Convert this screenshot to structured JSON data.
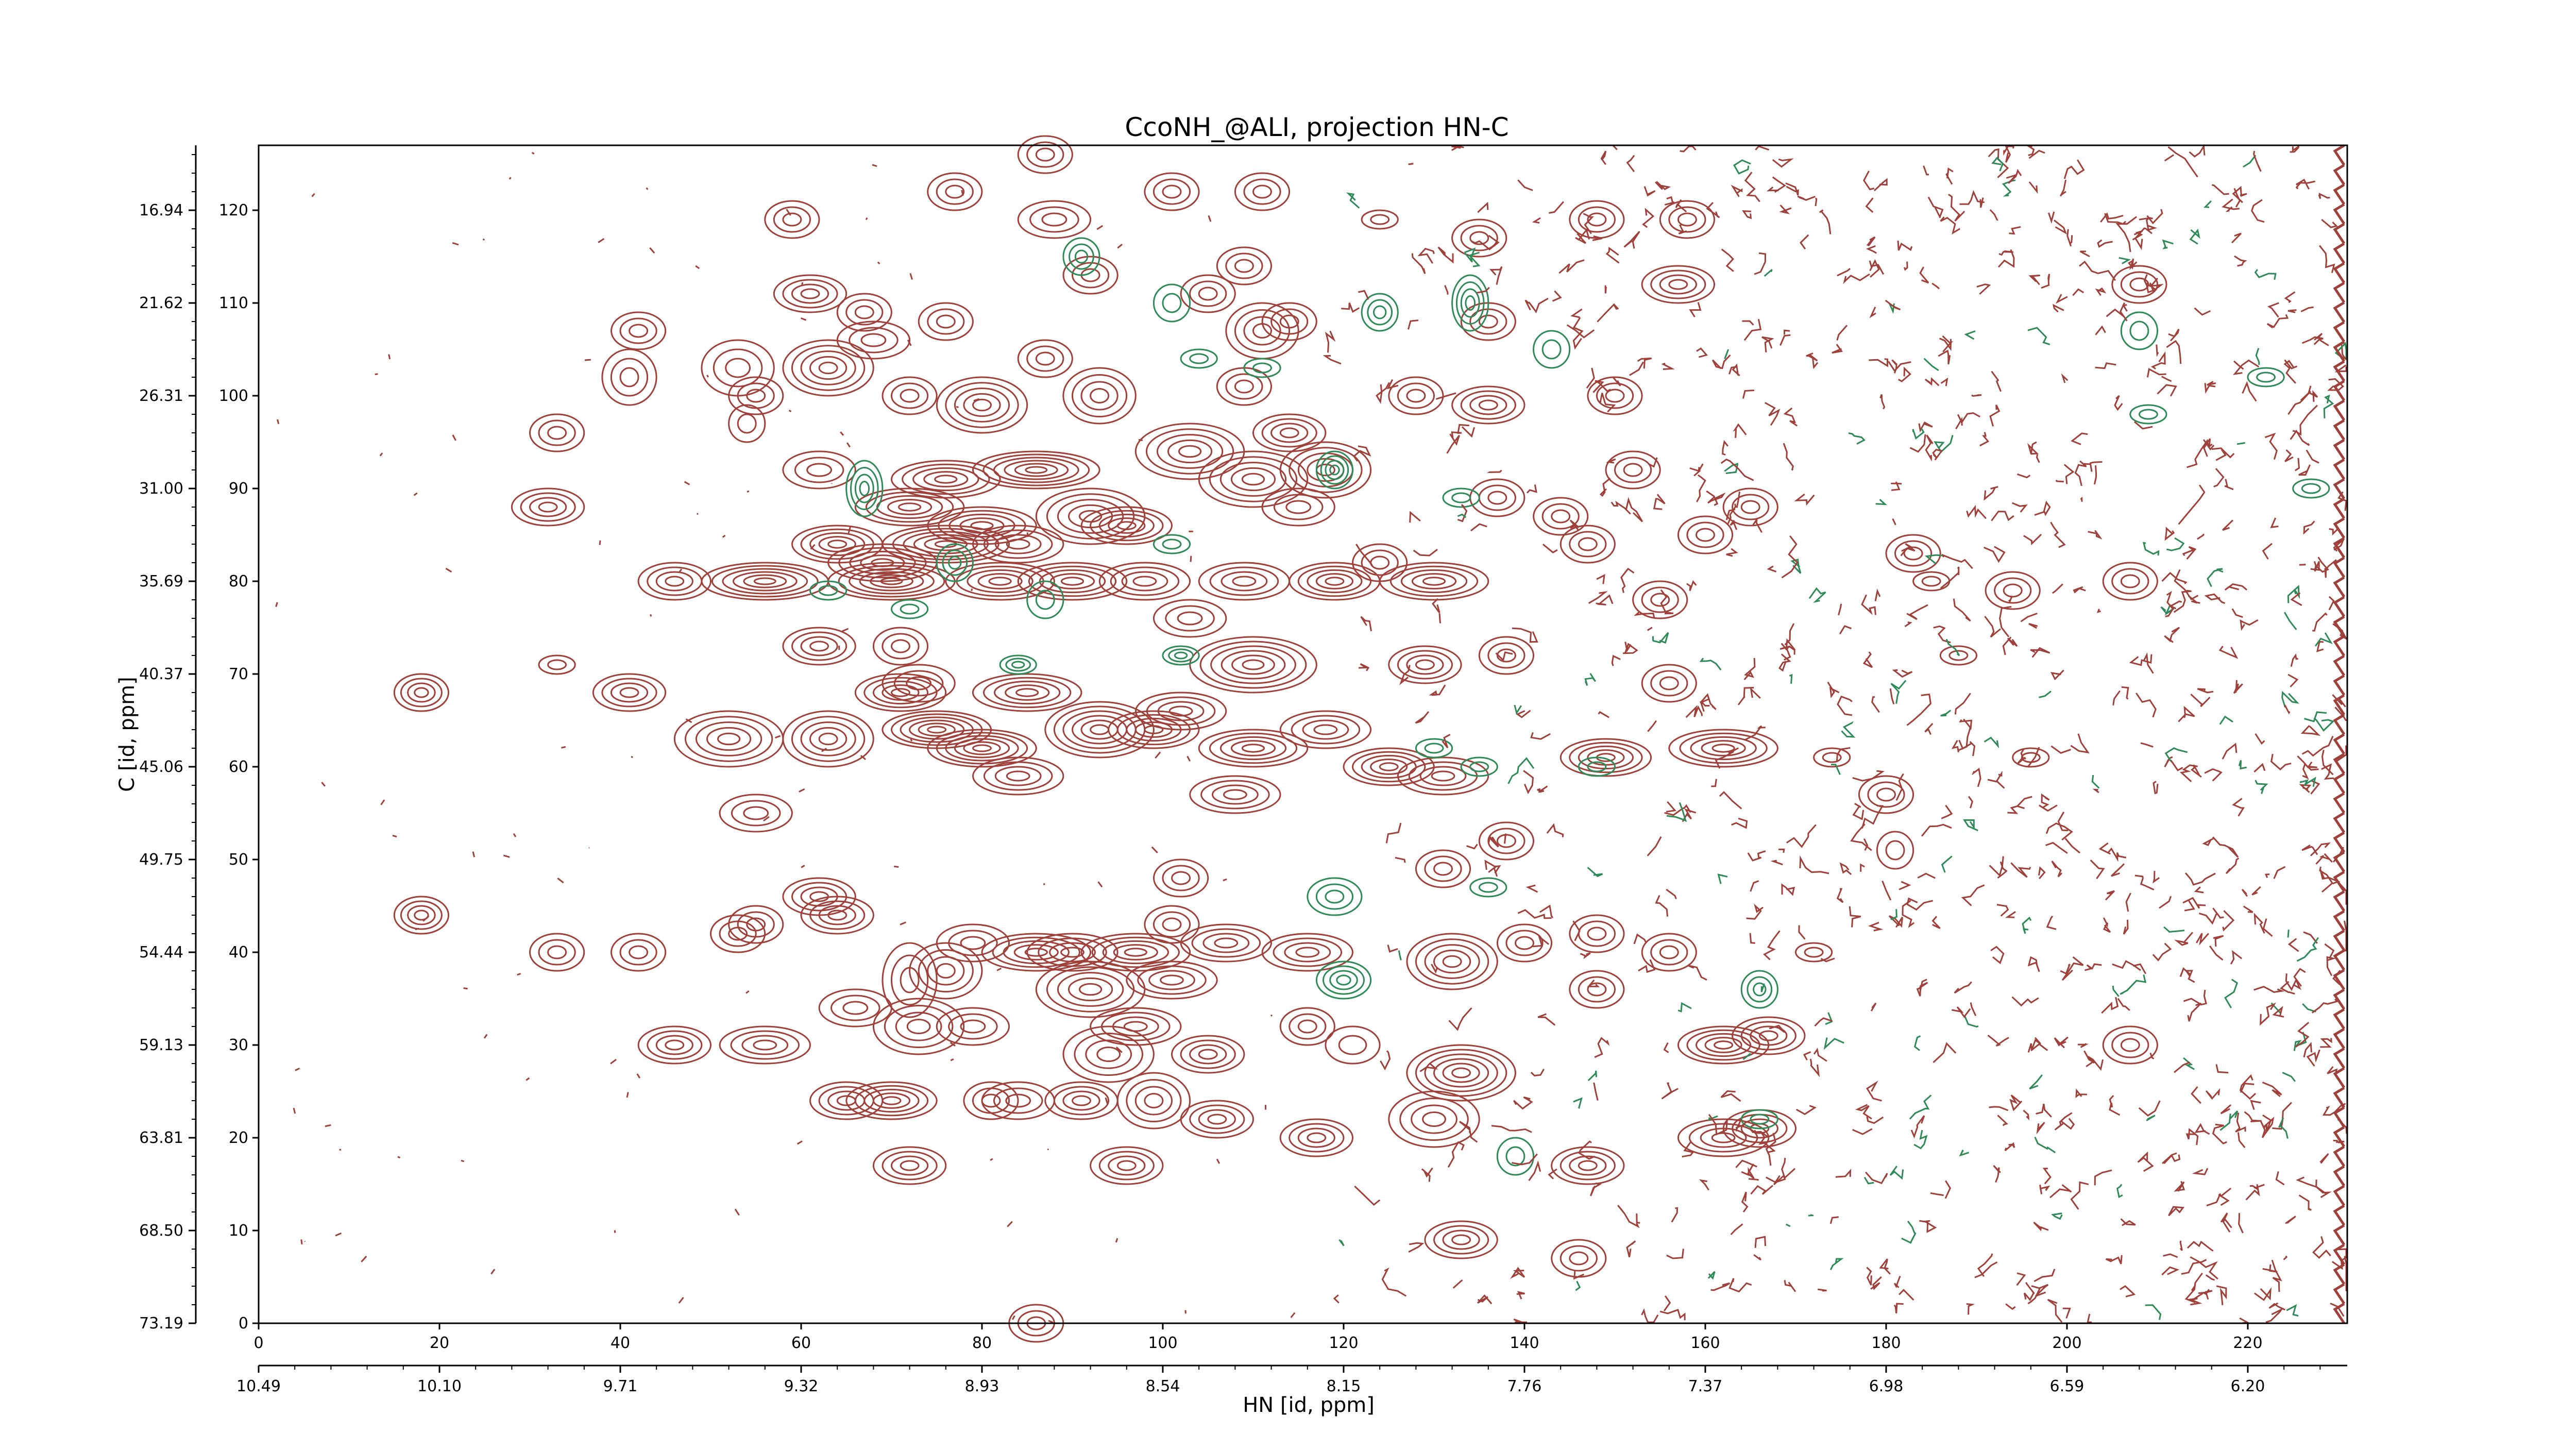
{
  "chart_data": {
    "type": "contour",
    "title": "CcoNH_@ALI, projection HN-C",
    "xlabel": "HN [id, ppm]",
    "ylabel": "C [id, ppm]",
    "x_index_ticks": [
      "0",
      "20",
      "40",
      "60",
      "80",
      "100",
      "120",
      "140",
      "160",
      "180",
      "200",
      "220"
    ],
    "x_index_range": [
      0,
      231
    ],
    "y_index_ticks": [
      "0",
      "10",
      "20",
      "30",
      "40",
      "50",
      "60",
      "70",
      "80",
      "90",
      "100",
      "110",
      "120"
    ],
    "y_index_range": [
      0,
      127
    ],
    "x_ppm_ticks": [
      "10.49",
      "10.10",
      "9.71",
      "9.32",
      "8.93",
      "8.54",
      "8.15",
      "7.76",
      "7.37",
      "6.98",
      "6.59",
      "6.20"
    ],
    "y_ppm_ticks": [
      "73.19",
      "68.50",
      "63.81",
      "59.13",
      "54.44",
      "49.75",
      "45.06",
      "40.37",
      "35.69",
      "31.00",
      "26.31",
      "21.62",
      "16.94"
    ],
    "positive_color": "#a0403a",
    "negative_color": "#2e8b57",
    "peaks": [
      [
        5,
        72,
        1,
        1,
        0
      ],
      [
        18,
        68,
        3,
        2,
        4
      ],
      [
        18,
        44,
        3,
        2,
        4
      ],
      [
        17,
        58,
        1,
        1,
        0
      ],
      [
        17,
        47,
        1,
        1,
        0
      ],
      [
        33,
        96,
        3,
        2,
        3
      ],
      [
        32,
        88,
        4,
        2,
        4
      ],
      [
        33,
        71,
        2,
        1,
        2
      ],
      [
        33,
        40,
        3,
        2,
        3
      ],
      [
        42,
        107,
        3,
        2,
        3
      ],
      [
        41,
        102,
        3,
        3,
        3
      ],
      [
        41,
        68,
        4,
        2,
        4
      ],
      [
        42,
        40,
        3,
        2,
        3
      ],
      [
        46,
        80,
        4,
        2,
        4
      ],
      [
        46,
        30,
        4,
        2,
        4
      ],
      [
        53,
        103,
        4,
        3,
        3
      ],
      [
        55,
        100,
        3,
        2,
        3
      ],
      [
        54,
        97,
        2,
        2,
        2
      ],
      [
        52,
        63,
        6,
        3,
        5
      ],
      [
        55,
        55,
        4,
        2,
        3
      ],
      [
        56,
        80,
        7,
        2,
        6
      ],
      [
        56,
        30,
        5,
        2,
        4
      ],
      [
        55,
        43,
        3,
        2,
        3
      ],
      [
        53,
        42,
        3,
        2,
        3
      ],
      [
        59,
        119,
        3,
        2,
        3
      ],
      [
        61,
        111,
        4,
        2,
        4
      ],
      [
        63,
        103,
        5,
        3,
        5
      ],
      [
        68,
        106,
        4,
        2,
        3
      ],
      [
        62,
        92,
        4,
        2,
        3
      ],
      [
        64,
        84,
        5,
        2,
        5
      ],
      [
        62,
        73,
        4,
        2,
        4
      ],
      [
        63,
        63,
        5,
        3,
        5
      ],
      [
        62,
        46,
        4,
        2,
        4
      ],
      [
        64,
        44,
        4,
        2,
        4
      ],
      [
        66,
        34,
        4,
        2,
        3
      ],
      [
        65,
        24,
        4,
        2,
        4
      ],
      [
        67,
        109,
        3,
        2,
        3
      ],
      [
        72,
        100,
        3,
        2,
        3
      ],
      [
        72,
        88,
        6,
        2,
        5
      ],
      [
        69,
        82,
        6,
        2,
        5
      ],
      [
        70,
        80,
        7,
        2,
        6
      ],
      [
        71,
        73,
        3,
        2,
        3
      ],
      [
        71,
        68,
        5,
        2,
        5
      ],
      [
        70,
        24,
        5,
        2,
        5
      ],
      [
        72,
        17,
        4,
        2,
        4
      ],
      [
        72,
        37,
        3,
        4,
        3
      ],
      [
        76,
        108,
        3,
        2,
        3
      ],
      [
        76,
        91,
        6,
        2,
        5
      ],
      [
        76,
        84,
        7,
        2,
        6
      ],
      [
        73,
        69,
        4,
        2,
        3
      ],
      [
        75,
        64,
        6,
        2,
        6
      ],
      [
        73,
        32,
        5,
        3,
        4
      ],
      [
        76,
        38,
        4,
        3,
        4
      ],
      [
        77,
        122,
        3,
        2,
        3
      ],
      [
        80,
        99,
        5,
        3,
        5
      ],
      [
        80,
        86,
        6,
        2,
        5
      ],
      [
        82,
        80,
        6,
        2,
        5
      ],
      [
        80,
        62,
        6,
        2,
        6
      ],
      [
        79,
        41,
        4,
        2,
        3
      ],
      [
        79,
        32,
        4,
        2,
        3
      ],
      [
        81,
        24,
        3,
        2,
        3
      ],
      [
        84,
        84,
        5,
        2,
        4
      ],
      [
        86,
        92,
        7,
        2,
        6
      ],
      [
        85,
        68,
        6,
        2,
        5
      ],
      [
        84,
        59,
        5,
        2,
        4
      ],
      [
        86,
        40,
        6,
        2,
        5
      ],
      [
        84,
        24,
        4,
        2,
        3
      ],
      [
        86,
        0,
        3,
        2,
        3
      ],
      [
        87,
        126,
        3,
        2,
        3
      ],
      [
        88,
        119,
        4,
        2,
        3
      ],
      [
        87,
        104,
        3,
        2,
        3
      ],
      [
        92,
        113,
        3,
        2,
        3
      ],
      [
        93,
        100,
        4,
        3,
        4
      ],
      [
        92,
        87,
        6,
        3,
        5
      ],
      [
        90,
        80,
        6,
        2,
        5
      ],
      [
        93,
        64,
        6,
        3,
        6
      ],
      [
        90,
        40,
        5,
        2,
        4
      ],
      [
        92,
        36,
        6,
        3,
        5
      ],
      [
        94,
        29,
        5,
        3,
        4
      ],
      [
        91,
        24,
        4,
        2,
        4
      ],
      [
        96,
        86,
        5,
        2,
        5
      ],
      [
        98,
        80,
        5,
        2,
        4
      ],
      [
        99,
        64,
        5,
        2,
        5
      ],
      [
        97,
        40,
        6,
        2,
        5
      ],
      [
        97,
        32,
        5,
        2,
        4
      ],
      [
        101,
        122,
        3,
        2,
        3
      ],
      [
        105,
        111,
        3,
        2,
        3
      ],
      [
        103,
        94,
        6,
        3,
        5
      ],
      [
        103,
        76,
        4,
        2,
        3
      ],
      [
        102,
        66,
        5,
        2,
        4
      ],
      [
        102,
        48,
        3,
        2,
        3
      ],
      [
        101,
        43,
        3,
        2,
        3
      ],
      [
        101,
        37,
        5,
        2,
        4
      ],
      [
        99,
        24,
        4,
        3,
        4
      ],
      [
        96,
        17,
        4,
        2,
        4
      ],
      [
        109,
        114,
        3,
        2,
        3
      ],
      [
        111,
        107,
        4,
        3,
        4
      ],
      [
        109,
        101,
        3,
        2,
        3
      ],
      [
        110,
        91,
        6,
        3,
        5
      ],
      [
        109,
        80,
        5,
        2,
        4
      ],
      [
        110,
        71,
        7,
        3,
        6
      ],
      [
        110,
        62,
        6,
        2,
        5
      ],
      [
        108,
        57,
        5,
        2,
        4
      ],
      [
        107,
        41,
        5,
        2,
        4
      ],
      [
        105,
        29,
        4,
        2,
        4
      ],
      [
        106,
        22,
        4,
        2,
        4
      ],
      [
        111,
        122,
        3,
        2,
        3
      ],
      [
        114,
        108,
        3,
        2,
        3
      ],
      [
        114,
        96,
        4,
        2,
        4
      ],
      [
        115,
        88,
        4,
        2,
        3
      ],
      [
        116,
        40,
        5,
        2,
        4
      ],
      [
        116,
        32,
        3,
        2,
        3
      ],
      [
        118,
        92,
        5,
        3,
        5
      ],
      [
        119,
        80,
        5,
        2,
        5
      ],
      [
        118,
        64,
        5,
        2,
        4
      ],
      [
        117,
        20,
        4,
        2,
        4
      ],
      [
        121,
        30,
        3,
        2,
        2
      ],
      [
        124,
        82,
        3,
        2,
        3
      ],
      [
        125,
        60,
        5,
        2,
        5
      ],
      [
        124,
        119,
        2,
        1,
        2
      ],
      [
        128,
        100,
        3,
        2,
        3
      ],
      [
        130,
        80,
        6,
        2,
        5
      ],
      [
        129,
        71,
        4,
        2,
        4
      ],
      [
        131,
        59,
        5,
        2,
        4
      ],
      [
        131,
        49,
        3,
        2,
        3
      ],
      [
        132,
        39,
        5,
        3,
        5
      ],
      [
        133,
        27,
        6,
        3,
        6
      ],
      [
        130,
        22,
        5,
        3,
        4
      ],
      [
        133,
        9,
        4,
        2,
        4
      ],
      [
        137,
        89,
        3,
        2,
        3
      ],
      [
        135,
        117,
        3,
        2,
        3
      ],
      [
        136,
        108,
        3,
        2,
        3
      ],
      [
        136,
        99,
        4,
        2,
        4
      ],
      [
        138,
        72,
        3,
        2,
        3
      ],
      [
        138,
        52,
        3,
        2,
        3
      ],
      [
        140,
        41,
        3,
        2,
        3
      ],
      [
        144,
        87,
        3,
        2,
        3
      ],
      [
        147,
        84,
        3,
        2,
        3
      ],
      [
        149,
        61,
        5,
        2,
        5
      ],
      [
        148,
        42,
        3,
        2,
        3
      ],
      [
        148,
        36,
        3,
        2,
        3
      ],
      [
        147,
        17,
        4,
        2,
        4
      ],
      [
        146,
        7,
        3,
        2,
        3
      ],
      [
        150,
        100,
        3,
        2,
        3
      ],
      [
        148,
        119,
        3,
        2,
        3
      ],
      [
        152,
        92,
        3,
        2,
        3
      ],
      [
        155,
        78,
        3,
        2,
        3
      ],
      [
        156,
        69,
        3,
        2,
        3
      ],
      [
        156,
        40,
        3,
        2,
        3
      ],
      [
        158,
        119,
        3,
        2,
        3
      ],
      [
        157,
        112,
        4,
        2,
        4
      ],
      [
        160,
        85,
        3,
        2,
        3
      ],
      [
        162,
        62,
        6,
        2,
        5
      ],
      [
        162,
        30,
        5,
        2,
        5
      ],
      [
        162,
        20,
        5,
        2,
        4
      ],
      [
        165,
        88,
        3,
        2,
        3
      ],
      [
        167,
        31,
        4,
        2,
        4
      ],
      [
        166,
        21,
        4,
        2,
        4
      ],
      [
        183,
        83,
        3,
        2,
        3
      ],
      [
        180,
        57,
        3,
        2,
        3
      ],
      [
        181,
        51,
        2,
        2,
        2
      ],
      [
        194,
        79,
        3,
        2,
        3
      ],
      [
        208,
        112,
        3,
        2,
        3
      ],
      [
        207,
        80,
        3,
        2,
        3
      ],
      [
        207,
        30,
        3,
        2,
        3
      ],
      [
        185,
        80,
        2,
        1,
        2
      ],
      [
        188,
        72,
        2,
        1,
        2
      ],
      [
        196,
        61,
        2,
        1,
        2
      ],
      [
        174,
        61,
        2,
        1,
        2
      ],
      [
        172,
        40,
        2,
        1,
        2
      ]
    ],
    "negative_peaks": [
      [
        67,
        90,
        2,
        3,
        4
      ],
      [
        77,
        82,
        2,
        2,
        3
      ],
      [
        84,
        71,
        2,
        1,
        3
      ],
      [
        87,
        78,
        2,
        2,
        2
      ],
      [
        91,
        115,
        2,
        2,
        3
      ],
      [
        101,
        110,
        2,
        2,
        2
      ],
      [
        101,
        84,
        2,
        1,
        2
      ],
      [
        102,
        72,
        2,
        1,
        3
      ],
      [
        104,
        104,
        2,
        1,
        2
      ],
      [
        111,
        103,
        2,
        1,
        2
      ],
      [
        119,
        92,
        2,
        2,
        4
      ],
      [
        119,
        46,
        3,
        2,
        3
      ],
      [
        120,
        37,
        3,
        2,
        4
      ],
      [
        124,
        109,
        2,
        2,
        3
      ],
      [
        130,
        62,
        2,
        1,
        2
      ],
      [
        134,
        110,
        2,
        3,
        4
      ],
      [
        135,
        60,
        2,
        1,
        2
      ],
      [
        136,
        47,
        2,
        1,
        2
      ],
      [
        139,
        18,
        2,
        2,
        2
      ],
      [
        143,
        105,
        2,
        2,
        2
      ],
      [
        148,
        60,
        2,
        1,
        2
      ],
      [
        166,
        36,
        2,
        2,
        3
      ],
      [
        166,
        22,
        2,
        1,
        2
      ],
      [
        208,
        107,
        2,
        2,
        2
      ],
      [
        209,
        98,
        2,
        1,
        2
      ],
      [
        222,
        102,
        2,
        1,
        2
      ],
      [
        227,
        90,
        2,
        1,
        2
      ],
      [
        63,
        79,
        2,
        1,
        2
      ],
      [
        72,
        77,
        2,
        1,
        2
      ],
      [
        133,
        89,
        2,
        1,
        2
      ]
    ]
  }
}
